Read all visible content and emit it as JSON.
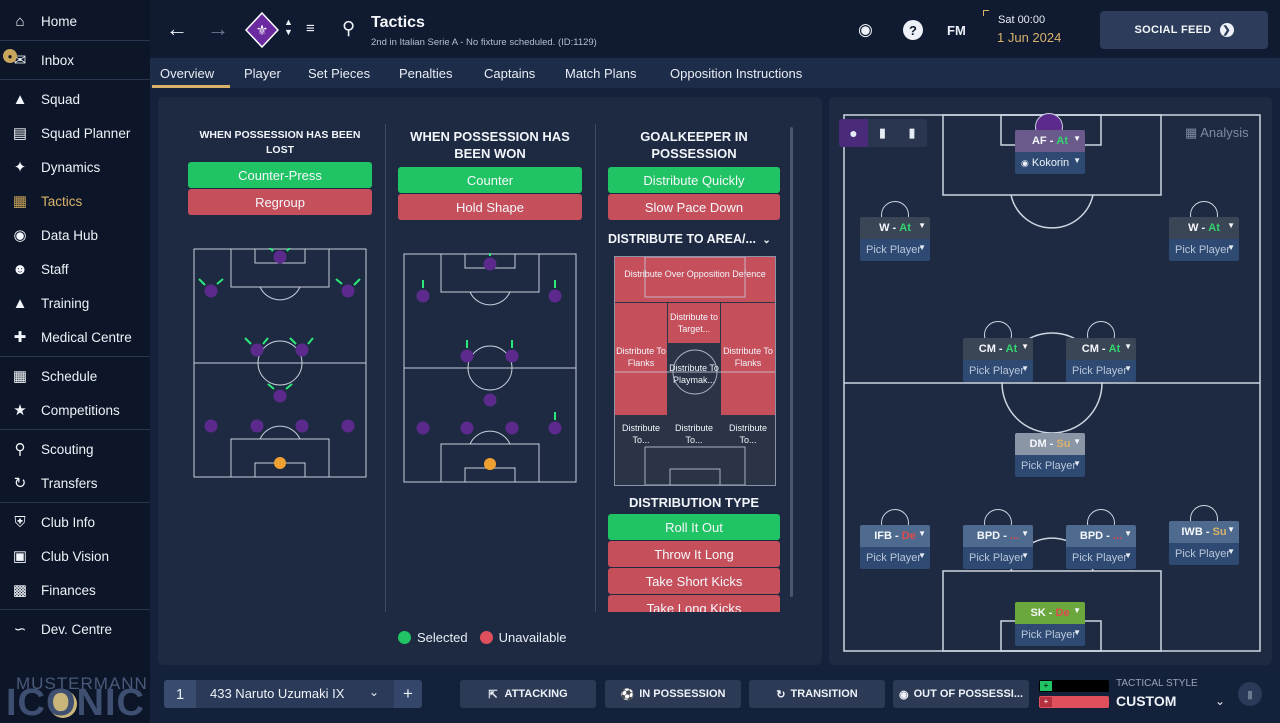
{
  "sidebar": {
    "items": [
      {
        "label": "Home",
        "icon": "home-icon"
      },
      {
        "label": "Inbox",
        "icon": "inbox-icon"
      },
      {
        "label": "Squad",
        "icon": "shirt-icon"
      },
      {
        "label": "Squad Planner",
        "icon": "clipboard-icon"
      },
      {
        "label": "Dynamics",
        "icon": "dynamics-icon"
      },
      {
        "label": "Tactics",
        "icon": "tactics-icon"
      },
      {
        "label": "Data Hub",
        "icon": "datahub-icon"
      },
      {
        "label": "Staff",
        "icon": "staff-icon"
      },
      {
        "label": "Training",
        "icon": "training-icon"
      },
      {
        "label": "Medical Centre",
        "icon": "medical-icon"
      },
      {
        "label": "Schedule",
        "icon": "calendar-icon"
      },
      {
        "label": "Competitions",
        "icon": "trophy-icon"
      },
      {
        "label": "Scouting",
        "icon": "search-icon"
      },
      {
        "label": "Transfers",
        "icon": "transfers-icon"
      },
      {
        "label": "Club Info",
        "icon": "shield-icon"
      },
      {
        "label": "Club Vision",
        "icon": "briefcase-icon"
      },
      {
        "label": "Finances",
        "icon": "money-icon"
      },
      {
        "label": "Dev. Centre",
        "icon": "dev-icon"
      }
    ],
    "logo_line1": "MUSTERMANN",
    "logo_line2": "ICONIC"
  },
  "header": {
    "title": "Tactics",
    "subtitle": "2nd in Italian Serie A - No fixture scheduled. (ID:1129)",
    "time": "Sat 00:00",
    "date": "1 Jun 2024",
    "fm_label": "FM",
    "social_feed": "SOCIAL FEED"
  },
  "tabs": [
    "Overview",
    "Player",
    "Set Pieces",
    "Penalties",
    "Captains",
    "Match Plans",
    "Opposition Instructions"
  ],
  "overview": {
    "lost": {
      "title": "WHEN POSSESSION HAS BEEN LOST",
      "options": [
        "Counter-Press",
        "Regroup"
      ]
    },
    "won": {
      "title": "WHEN POSSESSION HAS BEEN WON",
      "options": [
        "Counter",
        "Hold Shape"
      ]
    },
    "gk": {
      "title": "GOALKEEPER IN POSSESSION",
      "options": [
        "Distribute Quickly",
        "Slow Pace Down"
      ],
      "area_title": "DISTRIBUTE TO AREA/...",
      "areas": {
        "over_defence": "Distribute Over Opposition Defence",
        "target": "Distribute to Target...",
        "flank_left": "Distribute To Flanks",
        "flank_right": "Distribute To Flanks",
        "playmaker": "Distribute To Playmak...",
        "bottom_left": "Distribute To...",
        "bottom_mid": "Distribute To...",
        "bottom_right": "Distribute To..."
      },
      "dist_type_title": "DISTRIBUTION TYPE",
      "dist_types": [
        "Roll It Out",
        "Throw It Long",
        "Take Short Kicks",
        "Take Long Kicks"
      ]
    },
    "legend": {
      "selected": "Selected",
      "unavailable": "Unavailable"
    },
    "colors": {
      "selected": "#20c464",
      "unavailable": "#c5505c",
      "player_dot": "#5b2a8c",
      "gk_dot": "#f0a030"
    }
  },
  "pitch": {
    "analysis": "Analysis",
    "positions": {
      "af": {
        "pos": "AF",
        "role": "At",
        "player": "Kokorin"
      },
      "wl": {
        "pos": "W",
        "role": "At",
        "player": "Pick Player"
      },
      "wr": {
        "pos": "W",
        "role": "At",
        "player": "Pick Player"
      },
      "cml": {
        "pos": "CM",
        "role": "At",
        "player": "Pick Player"
      },
      "cmr": {
        "pos": "CM",
        "role": "At",
        "player": "Pick Player"
      },
      "dm": {
        "pos": "DM",
        "role": "Su",
        "player": "Pick Player"
      },
      "ifb": {
        "pos": "IFB",
        "role": "De",
        "player": "Pick Player"
      },
      "bpdl": {
        "pos": "BPD",
        "role": "...",
        "player": "Pick Player"
      },
      "bpdr": {
        "pos": "BPD",
        "role": "...",
        "player": "Pick Player"
      },
      "iwb": {
        "pos": "IWB",
        "role": "Su",
        "player": "Pick Player"
      },
      "sk": {
        "pos": "SK",
        "role": "De",
        "player": "Pick Player"
      }
    }
  },
  "bottom": {
    "tactic_num": "1",
    "tactic_name": "433 Naruto Uzumaki IX",
    "add": "+",
    "phases": [
      "ATTACKING",
      "IN POSSESSION",
      "TRANSITION",
      "OUT OF POSSESSI..."
    ],
    "style_label": "TACTICAL STYLE",
    "style_value": "CUSTOM"
  }
}
